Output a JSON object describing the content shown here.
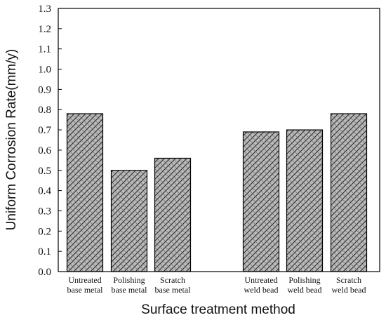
{
  "chart_data": {
    "type": "bar",
    "title": "",
    "xlabel": "Surface treatment method",
    "ylabel": "Uniform Corrosion Rate(mm/y)",
    "ylim": [
      0,
      1.3
    ],
    "yticks": [
      "0.0",
      "0.1",
      "0.2",
      "0.3",
      "0.4",
      "0.5",
      "0.6",
      "0.7",
      "0.8",
      "0.9",
      "1.0",
      "1.1",
      "1.2",
      "1.3"
    ],
    "categories": [
      [
        "Untreated",
        "base metal"
      ],
      [
        "Polishing",
        "base metal"
      ],
      [
        "Scratch",
        "base metal"
      ],
      [
        "Untreated",
        "weld bead"
      ],
      [
        "Polishing",
        "weld bead"
      ],
      [
        "Scratch",
        "weld bead"
      ]
    ],
    "values": [
      0.78,
      0.5,
      0.56,
      0.69,
      0.7,
      0.78
    ],
    "grid": false,
    "bar_fill": "#b9b9b9",
    "bar_pattern": "basket-weave hatch"
  }
}
